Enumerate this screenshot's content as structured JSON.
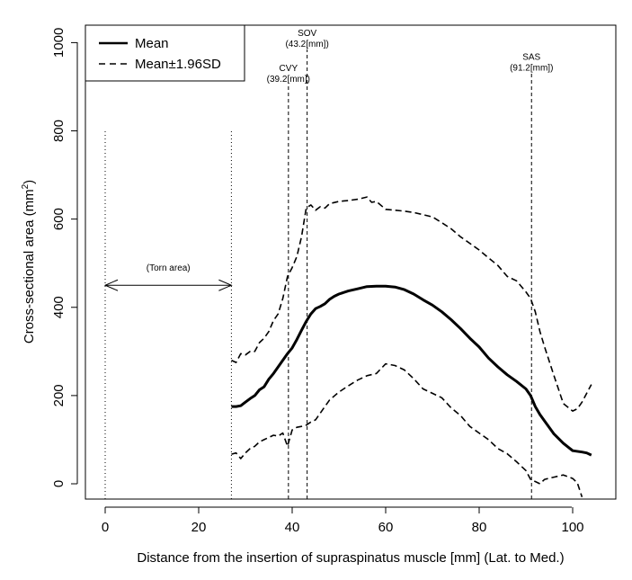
{
  "chart_data": {
    "type": "line",
    "title": "",
    "xlabel": "Distance from the insertion of supraspinatus muscle [mm] (Lat. to Med.)",
    "ylabel_main": "Cross-sectional area (mm",
    "ylabel_sup": "2",
    "ylabel_close": ")",
    "xlim": [
      -3,
      106
    ],
    "ylim": [
      -35,
      1035
    ],
    "xticks": [
      0,
      20,
      40,
      60,
      80,
      100
    ],
    "xtick_labels": [
      "0",
      "20",
      "40",
      "60",
      "80",
      "100"
    ],
    "yticks": [
      0,
      200,
      400,
      600,
      800,
      1000
    ],
    "ytick_labels": [
      "0",
      "200",
      "400",
      "600",
      "800",
      "1000"
    ],
    "legend": {
      "position": "top-left",
      "entries": [
        {
          "label": "Mean",
          "style": "solid"
        },
        {
          "label": "Mean±1.96SD",
          "style": "dashed"
        }
      ]
    },
    "series": [
      {
        "name": "Mean",
        "style": "solid",
        "x": [
          27,
          28,
          29,
          30,
          31,
          32,
          33,
          34,
          35,
          36,
          37,
          38,
          39,
          40,
          41,
          42,
          43,
          44,
          45,
          46,
          47,
          48,
          49,
          50,
          52,
          54,
          56,
          58,
          60,
          62,
          64,
          66,
          68,
          70,
          72,
          74,
          76,
          78,
          80,
          82,
          84,
          86,
          88,
          90,
          91,
          92,
          93,
          94,
          96,
          98,
          100,
          102,
          103,
          104
        ],
        "values": [
          175,
          175,
          177,
          185,
          193,
          200,
          213,
          220,
          237,
          250,
          265,
          280,
          295,
          308,
          327,
          348,
          368,
          385,
          397,
          402,
          408,
          418,
          425,
          430,
          437,
          442,
          447,
          448,
          448,
          446,
          440,
          430,
          417,
          405,
          390,
          372,
          352,
          330,
          310,
          285,
          265,
          247,
          232,
          215,
          200,
          175,
          157,
          142,
          113,
          92,
          75,
          72,
          70,
          65
        ]
      },
      {
        "name": "Mean+1.96SD",
        "style": "dashed",
        "x": [
          27,
          28,
          29,
          30,
          31,
          32,
          33,
          34,
          35,
          36,
          37,
          38,
          39,
          40,
          41,
          42,
          43,
          44,
          45,
          46,
          47,
          48,
          50,
          52,
          54,
          56,
          57,
          58,
          60,
          62,
          64,
          66,
          68,
          70,
          72,
          74,
          76,
          78,
          80,
          82,
          84,
          86,
          88,
          90,
          91,
          92,
          93,
          94,
          96,
          98,
          100,
          101,
          102,
          103,
          104
        ],
        "values": [
          280,
          275,
          295,
          292,
          300,
          300,
          320,
          330,
          345,
          370,
          385,
          420,
          470,
          490,
          515,
          560,
          625,
          632,
          620,
          628,
          625,
          635,
          640,
          642,
          645,
          650,
          638,
          640,
          622,
          620,
          618,
          615,
          610,
          605,
          592,
          578,
          560,
          545,
          530,
          512,
          495,
          470,
          460,
          435,
          420,
          390,
          345,
          310,
          245,
          182,
          165,
          170,
          185,
          205,
          225
        ]
      },
      {
        "name": "Mean-1.96SD",
        "style": "dashed",
        "x": [
          27,
          28,
          29,
          30,
          31,
          32,
          33,
          34,
          35,
          36,
          37,
          38,
          39,
          40,
          41,
          42,
          43,
          44,
          45,
          46,
          47,
          48,
          50,
          52,
          54,
          56,
          58,
          60,
          62,
          64,
          66,
          68,
          70,
          72,
          74,
          76,
          78,
          80,
          82,
          84,
          86,
          88,
          90,
          91,
          92,
          93,
          94,
          96,
          98,
          100,
          101,
          102
        ],
        "values": [
          67,
          70,
          57,
          70,
          80,
          85,
          95,
          100,
          105,
          110,
          108,
          115,
          85,
          122,
          128,
          130,
          133,
          140,
          145,
          160,
          175,
          190,
          208,
          222,
          235,
          245,
          250,
          272,
          268,
          258,
          238,
          215,
          205,
          195,
          172,
          155,
          130,
          115,
          100,
          80,
          68,
          50,
          30,
          10,
          5,
          0,
          10,
          15,
          20,
          12,
          2,
          -30
        ]
      }
    ],
    "reference_lines": [
      {
        "x": 0,
        "y_top": 800,
        "style": "dotted"
      },
      {
        "x": 27,
        "y_top": 800,
        "style": "dotted"
      },
      {
        "x": 39.2,
        "y_top": 905,
        "style": "dashed",
        "label_top": "CVY",
        "label_bottom": "(39.2[mm])"
      },
      {
        "x": 43.2,
        "y_top": 985,
        "style": "dashed",
        "label_top": "SOV",
        "label_bottom": "(43.2[mm])"
      },
      {
        "x": 91.2,
        "y_top": 930,
        "style": "dashed",
        "label_top": "SAS",
        "label_bottom": "(91.2[mm])"
      }
    ],
    "arrow": {
      "x_start": 0,
      "x_end": 27,
      "y": 450,
      "label": "(Torn area)"
    }
  }
}
